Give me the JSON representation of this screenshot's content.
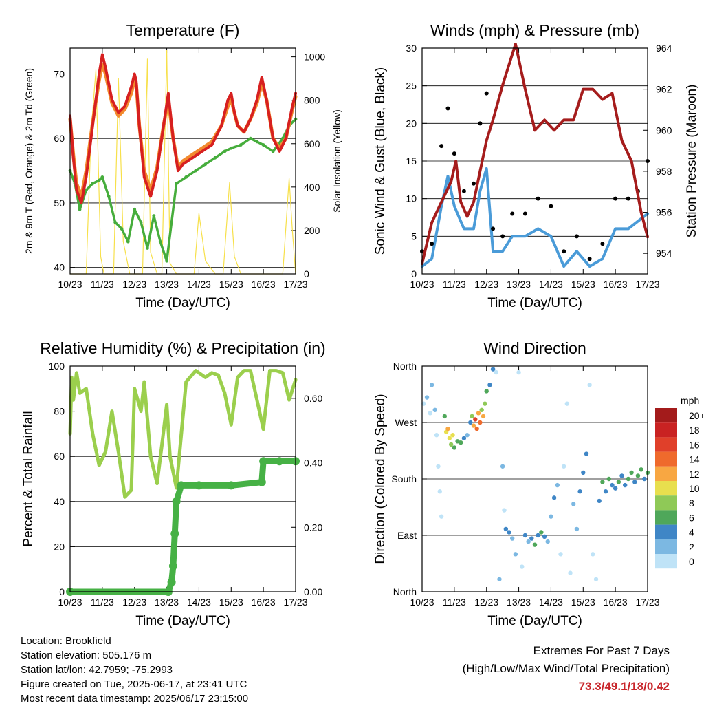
{
  "colors": {
    "t2m": "#d72020",
    "t9m": "#f28a2e",
    "td": "#46ad3c",
    "solar": "#f7e04a",
    "gust": "#000000",
    "wind": "#4a9bd8",
    "pressure": "#a51c1c",
    "rh": "#9bcf4d",
    "precip": "#46b145",
    "extremes": "#c8262b"
  },
  "x_ticks": [
    "10/23",
    "11/23",
    "12/23",
    "13/23",
    "14/23",
    "15/23",
    "16/23",
    "17/23"
  ],
  "speed_legend": {
    "title": "mph",
    "labels": [
      "20+",
      "18",
      "16",
      "14",
      "12",
      "10",
      "8",
      "6",
      "4",
      "2",
      "0"
    ],
    "colors": [
      "#a31b1b",
      "#c92222",
      "#e0402a",
      "#ef6a2c",
      "#f8a742",
      "#e8df4e",
      "#8fc957",
      "#4fa75a",
      "#3f86c6",
      "#7cb8e2",
      "#bfe3f7"
    ]
  },
  "chart_data": [
    {
      "type": "line",
      "title": "Temperature (F)",
      "xlabel": "Time (Day/UTC)",
      "ylabel": "2m & 9m T (Red, Orange) & 2m Td (Green)",
      "y2label": "Solar Insolation (Yellow)",
      "ylim": [
        39,
        74
      ],
      "y2lim": [
        0,
        1040
      ],
      "yticks": [
        40,
        50,
        60,
        70
      ],
      "y2ticks": [
        0,
        200,
        400,
        600,
        800,
        1000
      ],
      "xlim": [
        0,
        7
      ],
      "grid": true,
      "series": [
        {
          "key": "t2m",
          "x": [
            0,
            0.1,
            0.2,
            0.35,
            0.5,
            0.7,
            0.9,
            1.0,
            1.1,
            1.3,
            1.5,
            1.7,
            1.9,
            2.0,
            2.05,
            2.15,
            2.3,
            2.5,
            2.7,
            2.9,
            3.05,
            3.2,
            3.35,
            3.5,
            3.8,
            4.1,
            4.4,
            4.7,
            4.9,
            5.0,
            5.1,
            5.2,
            5.4,
            5.6,
            5.8,
            5.95,
            6.1,
            6.3,
            6.5,
            6.7,
            6.9,
            7.0
          ],
          "values": [
            63.5,
            57,
            52,
            50,
            54,
            62,
            70,
            73,
            71,
            66,
            64,
            65,
            68,
            70,
            69,
            62,
            54,
            51,
            55,
            62,
            67,
            60,
            55,
            56,
            57,
            58,
            59,
            62,
            66,
            67,
            64,
            62,
            61,
            63,
            66,
            69.5,
            66,
            60,
            58,
            60,
            65,
            67
          ]
        },
        {
          "key": "t9m",
          "x": [
            0,
            0.1,
            0.2,
            0.35,
            0.5,
            0.7,
            0.9,
            1.0,
            1.1,
            1.3,
            1.5,
            1.7,
            1.9,
            2.0,
            2.05,
            2.15,
            2.3,
            2.5,
            2.7,
            2.9,
            3.05,
            3.2,
            3.35,
            3.5,
            3.8,
            4.1,
            4.4,
            4.7,
            4.9,
            5.0,
            5.1,
            5.2,
            5.4,
            5.6,
            5.8,
            5.95,
            6.1,
            6.3,
            6.5,
            6.7,
            6.9,
            7.0
          ],
          "values": [
            63,
            57.5,
            53,
            51,
            55,
            62.5,
            69,
            71.5,
            70,
            65.5,
            63.5,
            64.5,
            67,
            69,
            68.5,
            62,
            55,
            52,
            55.5,
            62,
            66,
            60,
            55.5,
            56.5,
            57.5,
            58.5,
            59.5,
            62,
            65,
            66,
            64,
            62,
            61,
            63,
            65.5,
            68.5,
            66,
            60,
            58.5,
            60,
            64.5,
            66.5
          ]
        },
        {
          "key": "td",
          "x": [
            0,
            0.15,
            0.3,
            0.5,
            0.7,
            0.9,
            1.0,
            1.2,
            1.4,
            1.6,
            1.8,
            2.0,
            2.2,
            2.4,
            2.6,
            2.8,
            3.0,
            3.15,
            3.3,
            3.6,
            3.9,
            4.2,
            4.5,
            4.8,
            5.0,
            5.3,
            5.6,
            5.8,
            6.0,
            6.3,
            6.6,
            6.8,
            7.0
          ],
          "values": [
            55,
            53,
            49,
            52,
            53,
            53.5,
            54,
            51,
            47,
            46,
            44,
            49,
            47,
            43,
            48,
            44,
            41,
            47,
            53,
            54,
            55,
            56,
            57,
            58,
            58.5,
            59,
            60,
            59.5,
            59,
            58,
            60,
            62,
            63
          ]
        },
        {
          "key": "solar",
          "x": [
            0,
            0.25,
            0.5,
            0.65,
            0.8,
            0.95,
            1.05,
            1.2,
            1.35,
            1.5,
            1.65,
            1.85,
            2.05,
            2.25,
            2.4,
            2.5,
            2.7,
            2.85,
            3.0,
            3.1,
            3.3,
            3.6,
            3.85,
            4.0,
            4.2,
            4.5,
            4.75,
            4.95,
            5.1,
            5.3,
            5.6,
            5.85,
            6.05,
            6.3,
            6.6,
            6.8,
            6.9,
            7.0
          ],
          "values": [
            0,
            0,
            0,
            650,
            940,
            80,
            0,
            0,
            0,
            900,
            150,
            0,
            0,
            0,
            990,
            100,
            0,
            0,
            1030,
            50,
            0,
            0,
            0,
            280,
            60,
            0,
            0,
            420,
            80,
            0,
            0,
            0,
            0,
            0,
            0,
            440,
            200,
            0
          ]
        }
      ]
    },
    {
      "type": "line",
      "title": "Winds (mph) & Pressure (mb)",
      "xlabel": "Time (Day/UTC)",
      "ylabel": "Sonic Wind & Gust (Blue, Black)",
      "y2label": "Station Pressure (Maroon)",
      "ylim": [
        0,
        30
      ],
      "y2lim": [
        953,
        964
      ],
      "yticks": [
        0,
        5,
        10,
        15,
        20,
        25,
        30
      ],
      "y2ticks": [
        954,
        956,
        958,
        960,
        962,
        964
      ],
      "xlim": [
        0,
        7
      ],
      "grid": true,
      "series": [
        {
          "key": "gust",
          "x": [
            0,
            0.3,
            0.6,
            0.8,
            1.0,
            1.3,
            1.6,
            1.8,
            2.0,
            2.2,
            2.5,
            2.8,
            3.2,
            3.6,
            4.0,
            4.4,
            4.8,
            5.2,
            5.6,
            6.0,
            6.4,
            6.7,
            7.0
          ],
          "values": [
            3,
            4,
            17,
            22,
            16,
            11,
            12,
            20,
            24,
            6,
            5,
            8,
            8,
            10,
            9,
            3,
            5,
            2,
            4,
            10,
            10,
            11,
            15
          ]
        },
        {
          "key": "wind",
          "x": [
            0,
            0.3,
            0.6,
            0.8,
            1.0,
            1.3,
            1.6,
            1.8,
            2.0,
            2.2,
            2.5,
            2.8,
            3.2,
            3.6,
            4.0,
            4.4,
            4.8,
            5.2,
            5.6,
            6.0,
            6.4,
            6.7,
            7.0
          ],
          "values": [
            1,
            2,
            9,
            13,
            9,
            6,
            6,
            11,
            14,
            3,
            3,
            5,
            5,
            6,
            5,
            1,
            3,
            1,
            2,
            6,
            6,
            7,
            8
          ]
        },
        {
          "key": "pressure",
          "x": [
            0,
            0.3,
            0.6,
            0.9,
            1.05,
            1.2,
            1.4,
            1.6,
            1.8,
            2.0,
            2.2,
            2.5,
            2.9,
            3.2,
            3.5,
            3.8,
            4.1,
            4.4,
            4.7,
            5.0,
            5.3,
            5.6,
            5.9,
            6.2,
            6.5,
            6.8,
            7.0
          ],
          "values": [
            953.5,
            955.5,
            956.5,
            957.5,
            958.5,
            956.5,
            955.8,
            956.5,
            958,
            959.5,
            960.5,
            962.2,
            964.2,
            962,
            960,
            960.5,
            960,
            960.5,
            960.5,
            962,
            962,
            961.5,
            961.8,
            959.5,
            958.5,
            956,
            954.8
          ]
        }
      ]
    },
    {
      "type": "line",
      "title": "Relative Humidity (%) & Precipitation (in)",
      "xlabel": "Time (Day/UTC)",
      "ylabel": "Percent & Total Rainfall",
      "ylim": [
        0,
        100
      ],
      "y2lim": [
        0,
        0.7
      ],
      "yticks": [
        0,
        20,
        40,
        60,
        80,
        100
      ],
      "y2ticks": [
        0.0,
        0.2,
        0.4,
        0.6
      ],
      "y2ticklabels": [
        "0.00",
        "0.20",
        "0.40",
        "0.60"
      ],
      "xlim": [
        0,
        7
      ],
      "grid": true,
      "series": [
        {
          "key": "rh",
          "x": [
            0,
            0.05,
            0.1,
            0.2,
            0.3,
            0.5,
            0.7,
            0.9,
            1.1,
            1.3,
            1.5,
            1.7,
            1.9,
            2.0,
            2.1,
            2.2,
            2.3,
            2.5,
            2.7,
            2.85,
            3.0,
            3.1,
            3.3,
            3.6,
            3.9,
            4.2,
            4.4,
            4.6,
            4.8,
            5.0,
            5.2,
            5.4,
            5.6,
            5.8,
            6.0,
            6.2,
            6.4,
            6.6,
            6.8,
            7.0
          ],
          "values": [
            70,
            95,
            85,
            97,
            88,
            90,
            70,
            56,
            62,
            80,
            62,
            42,
            45,
            90,
            85,
            80,
            93,
            60,
            48,
            65,
            83,
            60,
            46,
            93,
            98,
            95,
            97,
            96,
            88,
            74,
            95,
            98,
            98,
            85,
            72,
            98,
            98,
            97,
            85,
            94
          ]
        },
        {
          "key": "precip",
          "x": [
            0,
            3.05,
            3.15,
            3.2,
            3.25,
            3.3,
            3.45,
            4.0,
            5.0,
            5.95,
            6.0,
            6.5,
            7.0
          ],
          "values": [
            0.0,
            0.0,
            0.03,
            0.08,
            0.18,
            0.28,
            0.33,
            0.33,
            0.33,
            0.34,
            0.405,
            0.405,
            0.405
          ]
        }
      ]
    },
    {
      "type": "scatter",
      "title": "Wind Direction",
      "xlabel": "Time (Day/UTC)",
      "ylabel": "Direction (Colored By Speed)",
      "ylim": [
        0,
        360
      ],
      "yticklabels": [
        "North",
        "East",
        "South",
        "West",
        "North"
      ],
      "xlim": [
        0,
        7
      ],
      "grid": true,
      "points": [
        [
          0.05,
          300,
          1
        ],
        [
          0.15,
          310,
          2
        ],
        [
          0.25,
          285,
          1
        ],
        [
          0.3,
          330,
          2
        ],
        [
          0.4,
          290,
          3
        ],
        [
          0.45,
          250,
          1
        ],
        [
          0.5,
          200,
          0
        ],
        [
          0.55,
          160,
          1
        ],
        [
          0.6,
          120,
          0
        ],
        [
          0.7,
          280,
          6
        ],
        [
          0.75,
          255,
          11
        ],
        [
          0.8,
          260,
          13
        ],
        [
          0.85,
          245,
          10
        ],
        [
          0.9,
          235,
          8
        ],
        [
          0.95,
          250,
          11
        ],
        [
          1.0,
          230,
          6
        ],
        [
          1.1,
          240,
          7
        ],
        [
          1.2,
          238,
          6
        ],
        [
          1.3,
          245,
          5
        ],
        [
          1.4,
          250,
          2
        ],
        [
          1.5,
          270,
          5
        ],
        [
          1.55,
          280,
          8
        ],
        [
          1.6,
          265,
          13
        ],
        [
          1.65,
          275,
          16
        ],
        [
          1.7,
          260,
          14
        ],
        [
          1.75,
          285,
          12
        ],
        [
          1.8,
          270,
          15
        ],
        [
          1.85,
          290,
          9
        ],
        [
          1.9,
          280,
          12
        ],
        [
          1.95,
          300,
          8
        ],
        [
          2.0,
          320,
          6
        ],
        [
          2.1,
          330,
          5
        ],
        [
          2.2,
          355,
          4
        ],
        [
          2.3,
          350,
          1
        ],
        [
          2.4,
          20,
          3
        ],
        [
          2.5,
          200,
          2
        ],
        [
          2.55,
          130,
          1
        ],
        [
          2.6,
          100,
          4
        ],
        [
          2.7,
          95,
          5
        ],
        [
          2.8,
          85,
          3
        ],
        [
          2.9,
          60,
          2
        ],
        [
          3.0,
          350,
          0
        ],
        [
          3.1,
          40,
          1
        ],
        [
          3.2,
          90,
          4
        ],
        [
          3.3,
          80,
          3
        ],
        [
          3.4,
          85,
          5
        ],
        [
          3.5,
          75,
          6
        ],
        [
          3.6,
          90,
          5
        ],
        [
          3.7,
          95,
          6
        ],
        [
          3.8,
          88,
          4
        ],
        [
          3.9,
          80,
          2
        ],
        [
          4.0,
          120,
          3
        ],
        [
          4.1,
          150,
          4
        ],
        [
          4.2,
          170,
          3
        ],
        [
          4.3,
          60,
          1
        ],
        [
          4.4,
          200,
          0
        ],
        [
          4.5,
          300,
          1
        ],
        [
          4.6,
          30,
          0
        ],
        [
          4.7,
          140,
          3
        ],
        [
          4.8,
          100,
          2
        ],
        [
          4.9,
          160,
          4
        ],
        [
          5.0,
          190,
          5
        ],
        [
          5.1,
          220,
          4
        ],
        [
          5.2,
          330,
          1
        ],
        [
          5.3,
          60,
          1
        ],
        [
          5.4,
          20,
          0
        ],
        [
          5.5,
          145,
          4
        ],
        [
          5.6,
          175,
          6
        ],
        [
          5.7,
          160,
          4
        ],
        [
          5.8,
          180,
          7
        ],
        [
          5.9,
          170,
          5
        ],
        [
          6.0,
          165,
          4
        ],
        [
          6.1,
          175,
          6
        ],
        [
          6.2,
          185,
          5
        ],
        [
          6.3,
          170,
          4
        ],
        [
          6.4,
          180,
          6
        ],
        [
          6.5,
          190,
          7
        ],
        [
          6.6,
          175,
          5
        ],
        [
          6.7,
          185,
          6
        ],
        [
          6.8,
          195,
          7
        ],
        [
          6.9,
          180,
          5
        ],
        [
          7.0,
          190,
          6
        ]
      ]
    }
  ],
  "info": {
    "location": "Location: Brookfield",
    "elevation": "Station elevation: 505.176 m",
    "latlon": "Station lat/lon: 42.7959; -75.2993",
    "created": "Figure created on Tue, 2025-06-17, at 23:41 UTC",
    "latest": "Most recent data timestamp: 2025/06/17 23:15:00"
  },
  "extremes": {
    "title": "Extremes For Past 7 Days",
    "subtitle": "(High/Low/Max Wind/Total Precipitation)",
    "values": "73.3/49.1/18/0.42"
  }
}
